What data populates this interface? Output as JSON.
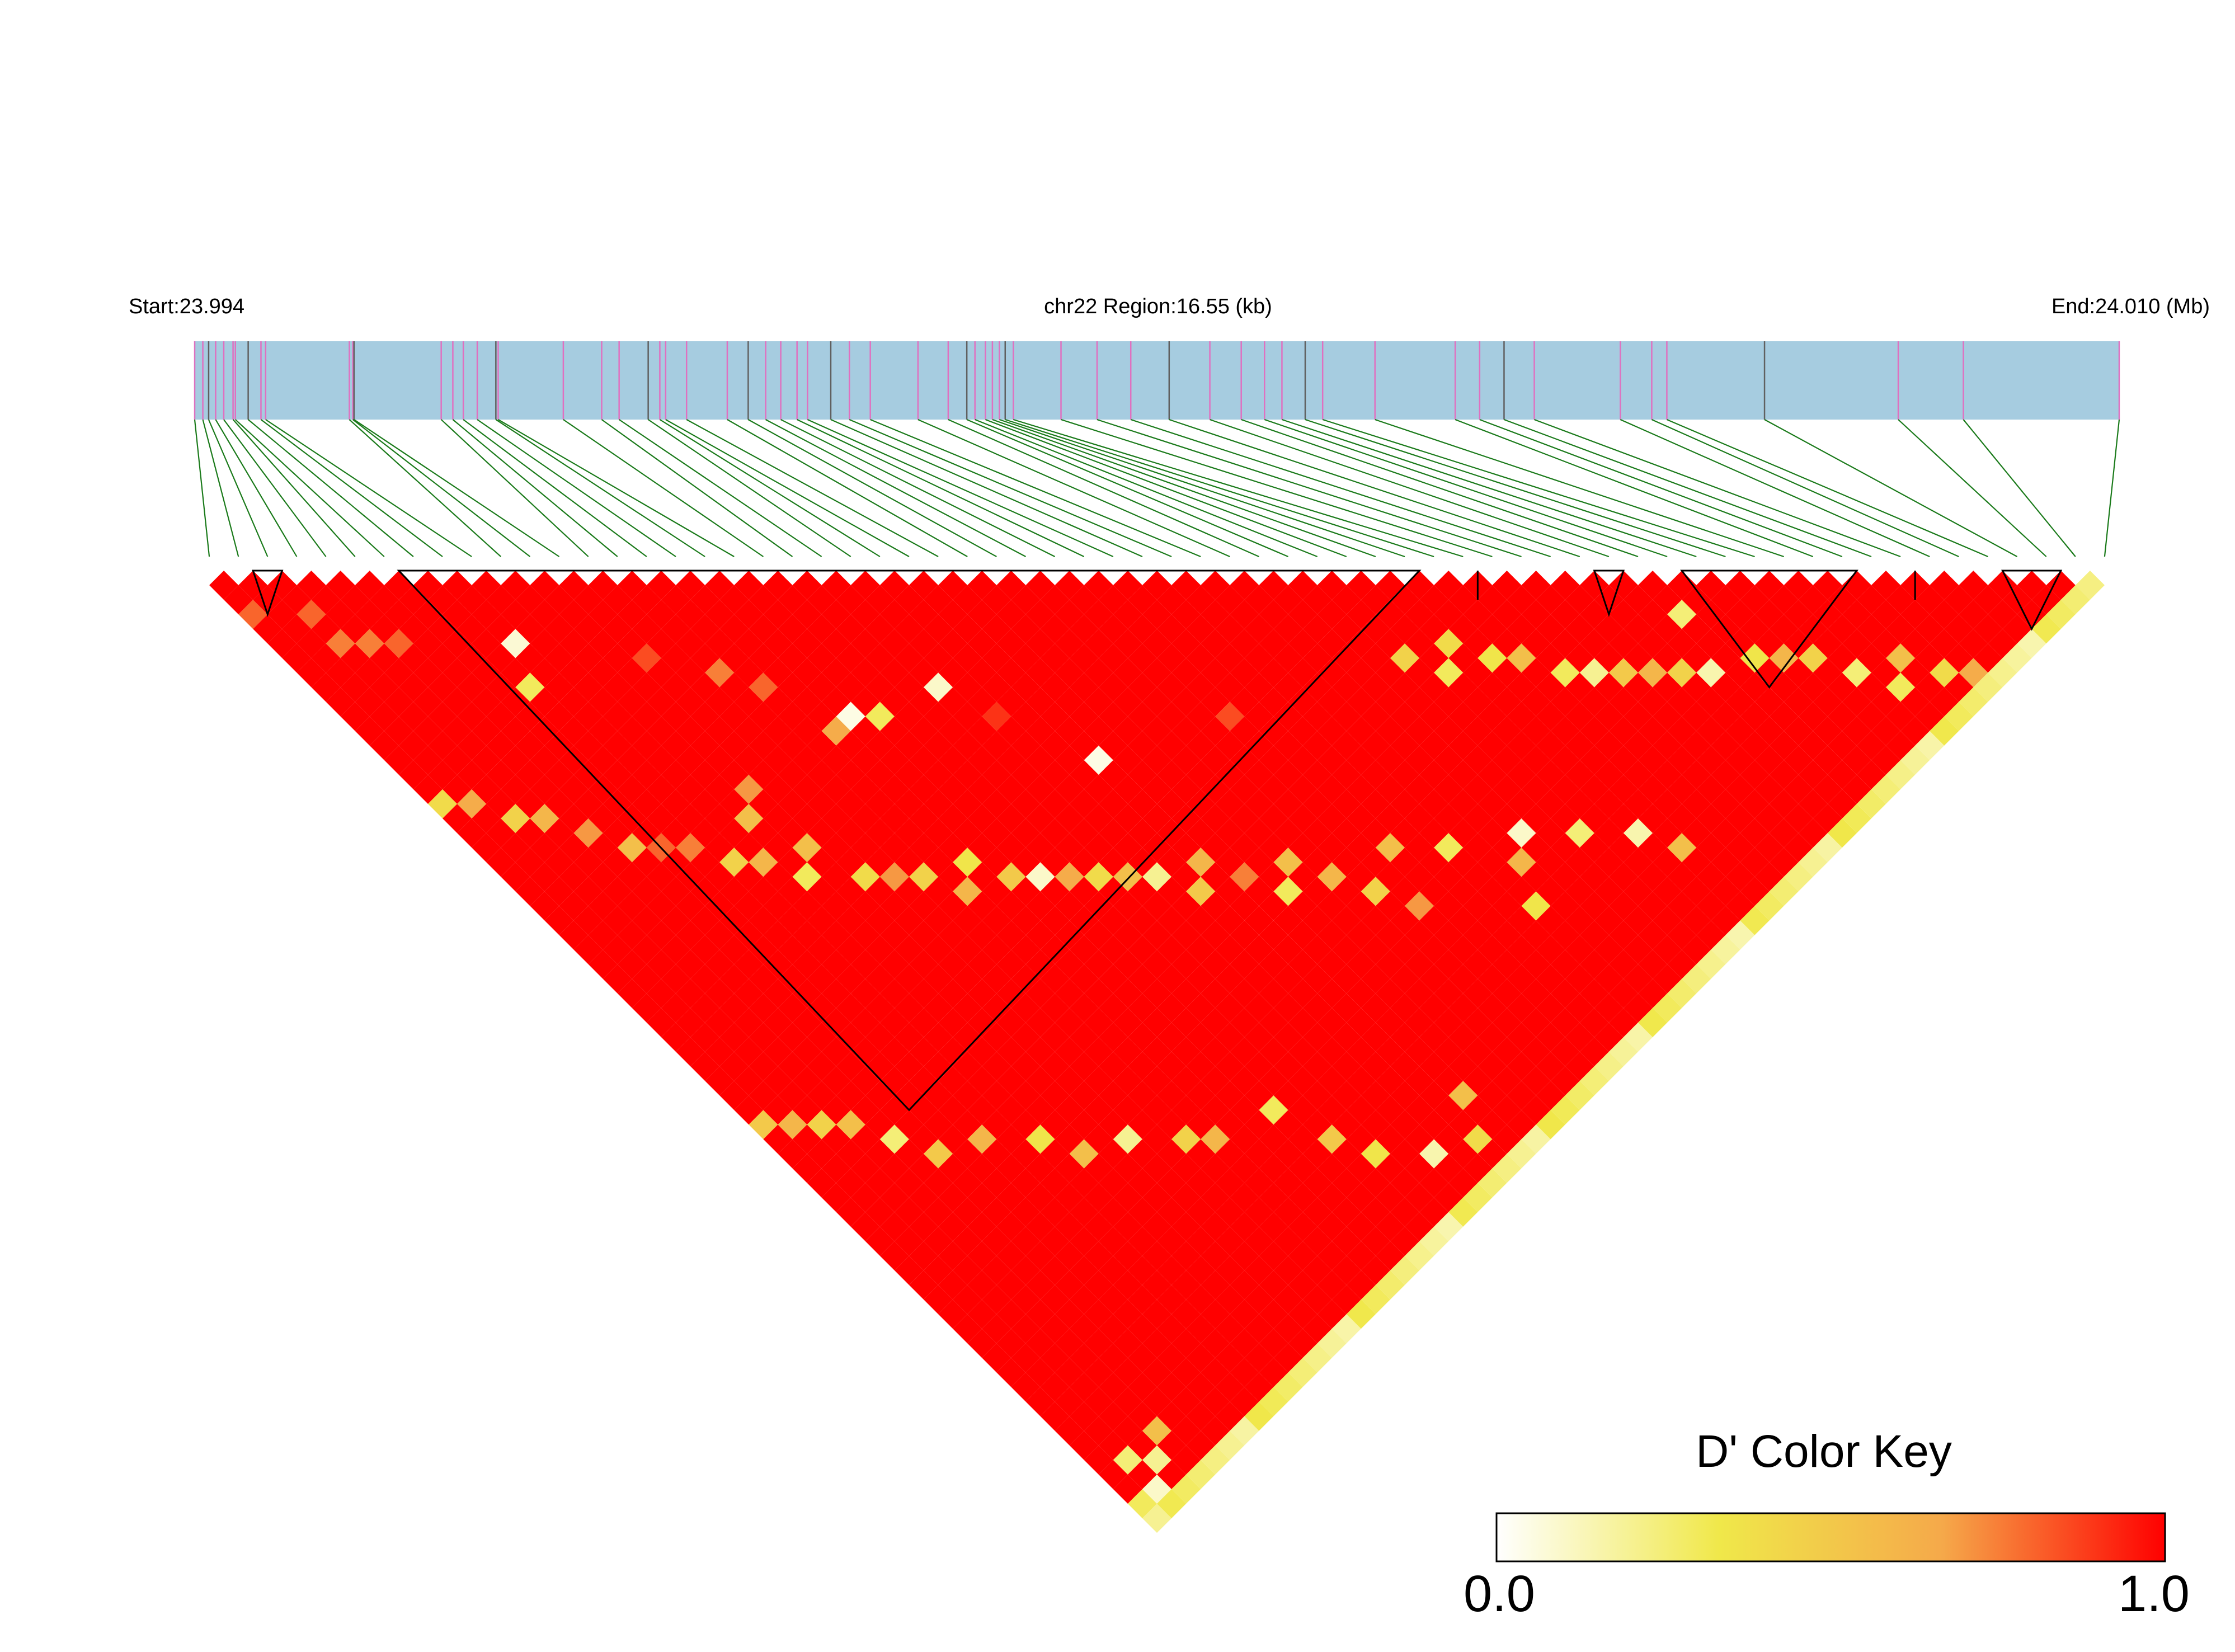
{
  "chart_data": {
    "type": "heatmap",
    "subtype": "linkage-disequilibrium-triangle",
    "region": {
      "start_label": "Start:23.994",
      "center_label": "chr22 Region:16.55 (kb)",
      "end_label": "End:24.010 (Mb)",
      "chromosome": "chr22",
      "start_mb": 23.994,
      "end_mb": 24.01,
      "length_kb": 16.55
    },
    "snp_count": 66,
    "snp_positions_kb": [
      0.0,
      0.07,
      0.12,
      0.18,
      0.25,
      0.33,
      0.35,
      0.46,
      0.57,
      0.61,
      1.33,
      1.36,
      1.37,
      2.12,
      2.22,
      2.31,
      2.43,
      2.59,
      2.61,
      3.17,
      3.5,
      3.65,
      3.9,
      4.0,
      4.05,
      4.23,
      4.58,
      4.76,
      4.91,
      5.04,
      5.18,
      5.27,
      5.47,
      5.63,
      5.81,
      6.22,
      6.48,
      6.64,
      6.71,
      6.8,
      6.86,
      6.92,
      6.97,
      7.04,
      7.45,
      7.76,
      8.05,
      8.38,
      8.73,
      9.0,
      9.2,
      9.35,
      9.55,
      9.7,
      10.15,
      10.84,
      11.05,
      11.26,
      11.52,
      12.26,
      12.53,
      12.66,
      13.5,
      14.65,
      15.21,
      16.55
    ],
    "ld_blocks_snp_index": [
      [
        1,
        3
      ],
      [
        6,
        42
      ],
      [
        43,
        44
      ],
      [
        47,
        49
      ],
      [
        50,
        57
      ],
      [
        58,
        59
      ],
      [
        61,
        64
      ]
    ],
    "d_prime_strong_default": 1.0,
    "d_prime_exceptions": [
      {
        "i": 0,
        "j": 3,
        "d": 0.8
      },
      {
        "i": 2,
        "j": 7,
        "d": 0.75
      },
      {
        "i": 3,
        "j": 8,
        "d": 0.75
      },
      {
        "i": 2,
        "j": 5,
        "d": 0.8
      },
      {
        "i": 4,
        "j": 9,
        "d": 0.8
      },
      {
        "i": 8,
        "j": 13,
        "d": 0.08
      },
      {
        "i": 7,
        "j": 15,
        "d": 0.3
      },
      {
        "i": 12,
        "j": 18,
        "d": 0.85
      },
      {
        "i": 14,
        "j": 21,
        "d": 0.75
      },
      {
        "i": 15,
        "j": 23,
        "d": 0.8
      },
      {
        "i": 10,
        "j": 27,
        "d": 0.55
      },
      {
        "i": 11,
        "j": 26,
        "d": 0.7
      },
      {
        "i": 16,
        "j": 27,
        "d": 0.65
      },
      {
        "i": 17,
        "j": 27,
        "d": 0.05
      },
      {
        "i": 18,
        "j": 28,
        "d": 0.3
      },
      {
        "i": 21,
        "j": 29,
        "d": 0.1
      },
      {
        "i": 24,
        "j": 37,
        "d": 0.05
      },
      {
        "i": 22,
        "j": 32,
        "d": 0.9
      },
      {
        "i": 30,
        "j": 40,
        "d": 0.85
      },
      {
        "i": 38,
        "j": 44,
        "d": 0.45
      },
      {
        "i": 40,
        "j": 45,
        "d": 0.4
      },
      {
        "i": 39,
        "j": 46,
        "d": 0.3
      },
      {
        "i": 41,
        "j": 47,
        "d": 0.35
      },
      {
        "i": 42,
        "j": 48,
        "d": 0.55
      },
      {
        "i": 43,
        "j": 50,
        "d": 0.3
      },
      {
        "i": 44,
        "j": 51,
        "d": 0.2
      },
      {
        "i": 45,
        "j": 52,
        "d": 0.5
      },
      {
        "i": 46,
        "j": 53,
        "d": 0.6
      },
      {
        "i": 47,
        "j": 54,
        "d": 0.45
      },
      {
        "i": 48,
        "j": 55,
        "d": 0.15
      },
      {
        "i": 49,
        "j": 52,
        "d": 0.25
      },
      {
        "i": 50,
        "j": 56,
        "d": 0.35
      },
      {
        "i": 51,
        "j": 57,
        "d": 0.6
      },
      {
        "i": 52,
        "j": 58,
        "d": 0.45
      },
      {
        "i": 53,
        "j": 60,
        "d": 0.25
      },
      {
        "i": 54,
        "j": 62,
        "d": 0.3
      },
      {
        "i": 55,
        "j": 61,
        "d": 0.55
      },
      {
        "i": 56,
        "j": 63,
        "d": 0.4
      },
      {
        "i": 57,
        "j": 64,
        "d": 0.65
      },
      {
        "i": 40,
        "j": 58,
        "d": 0.15
      },
      {
        "i": 41,
        "j": 60,
        "d": 0.55
      },
      {
        "i": 38,
        "j": 56,
        "d": 0.25
      },
      {
        "i": 36,
        "j": 54,
        "d": 0.1
      },
      {
        "i": 35,
        "j": 55,
        "d": 0.6
      },
      {
        "i": 33,
        "j": 52,
        "d": 0.3
      },
      {
        "i": 34,
        "j": 57,
        "d": 0.35
      },
      {
        "i": 31,
        "j": 50,
        "d": 0.55
      },
      {
        "i": 30,
        "j": 53,
        "d": 0.7
      },
      {
        "i": 29,
        "j": 51,
        "d": 0.45
      },
      {
        "i": 28,
        "j": 49,
        "d": 0.6
      },
      {
        "i": 27,
        "j": 47,
        "d": 0.55
      },
      {
        "i": 26,
        "j": 48,
        "d": 0.3
      },
      {
        "i": 25,
        "j": 46,
        "d": 0.75
      },
      {
        "i": 24,
        "j": 44,
        "d": 0.6
      },
      {
        "i": 23,
        "j": 45,
        "d": 0.5
      },
      {
        "i": 22,
        "j": 43,
        "d": 0.2
      },
      {
        "i": 21,
        "j": 42,
        "d": 0.55
      },
      {
        "i": 20,
        "j": 41,
        "d": 0.4
      },
      {
        "i": 19,
        "j": 40,
        "d": 0.65
      },
      {
        "i": 18,
        "j": 39,
        "d": 0.1
      },
      {
        "i": 17,
        "j": 38,
        "d": 0.5
      },
      {
        "i": 16,
        "j": 36,
        "d": 0.35
      },
      {
        "i": 15,
        "j": 37,
        "d": 0.6
      },
      {
        "i": 14,
        "j": 35,
        "d": 0.45
      },
      {
        "i": 13,
        "j": 34,
        "d": 0.7
      },
      {
        "i": 12,
        "j": 33,
        "d": 0.4
      },
      {
        "i": 11,
        "j": 30,
        "d": 0.55
      },
      {
        "i": 10,
        "j": 31,
        "d": 0.3
      },
      {
        "i": 9,
        "j": 29,
        "d": 0.6
      },
      {
        "i": 8,
        "j": 28,
        "d": 0.45
      },
      {
        "i": 7,
        "j": 26,
        "d": 0.75
      },
      {
        "i": 6,
        "j": 25,
        "d": 0.8
      },
      {
        "i": 5,
        "j": 24,
        "d": 0.55
      },
      {
        "i": 4,
        "j": 22,
        "d": 0.7
      },
      {
        "i": 3,
        "j": 20,
        "d": 0.6
      },
      {
        "i": 2,
        "j": 19,
        "d": 0.45
      },
      {
        "i": 1,
        "j": 17,
        "d": 0.65
      },
      {
        "i": 0,
        "j": 16,
        "d": 0.4
      },
      {
        "i": 20,
        "j": 60,
        "d": 0.35
      },
      {
        "i": 22,
        "j": 62,
        "d": 0.15
      },
      {
        "i": 24,
        "j": 63,
        "d": 0.4
      },
      {
        "i": 25,
        "j": 61,
        "d": 0.55
      },
      {
        "i": 19,
        "j": 58,
        "d": 0.5
      },
      {
        "i": 18,
        "j": 55,
        "d": 0.3
      },
      {
        "i": 15,
        "j": 54,
        "d": 0.6
      },
      {
        "i": 14,
        "j": 53,
        "d": 0.45
      },
      {
        "i": 12,
        "j": 51,
        "d": 0.2
      },
      {
        "i": 10,
        "j": 50,
        "d": 0.55
      },
      {
        "i": 9,
        "j": 48,
        "d": 0.35
      },
      {
        "i": 7,
        "j": 46,
        "d": 0.6
      },
      {
        "i": 5,
        "j": 45,
        "d": 0.5
      },
      {
        "i": 4,
        "j": 43,
        "d": 0.25
      },
      {
        "i": 3,
        "j": 41,
        "d": 0.55
      },
      {
        "i": 2,
        "j": 40,
        "d": 0.45
      },
      {
        "i": 1,
        "j": 39,
        "d": 0.6
      },
      {
        "i": 0,
        "j": 38,
        "d": 0.5
      },
      {
        "i": 0,
        "j": 64,
        "d": 0.3
      },
      {
        "i": 0,
        "j": 65,
        "d": 0.2
      },
      {
        "i": 1,
        "j": 64,
        "d": 0.1
      },
      {
        "i": 2,
        "j": 63,
        "d": 0.2
      },
      {
        "i": 3,
        "j": 62,
        "d": 0.55
      },
      {
        "i": 1,
        "j": 62,
        "d": 0.25
      }
    ],
    "last_snp_d_rule": "d' with the last SNP ranges 0.1–0.3 (pale yellow strip)",
    "color_key": {
      "title": "D' Color Key",
      "min_label": "0.0",
      "max_label": "1.0",
      "min": 0.0,
      "max": 1.0,
      "stops": [
        "#ffffff",
        "#f0e84a",
        "#f5a94a",
        "#ff0000"
      ]
    },
    "colors": {
      "region_bar": "#a6cce0",
      "snp_tick_major": "#e070c0",
      "snp_tick_minor": "#606060",
      "connector_lines": "#1a7a1a",
      "block_outline": "#000000",
      "ld_strong": "#ff0000"
    }
  }
}
